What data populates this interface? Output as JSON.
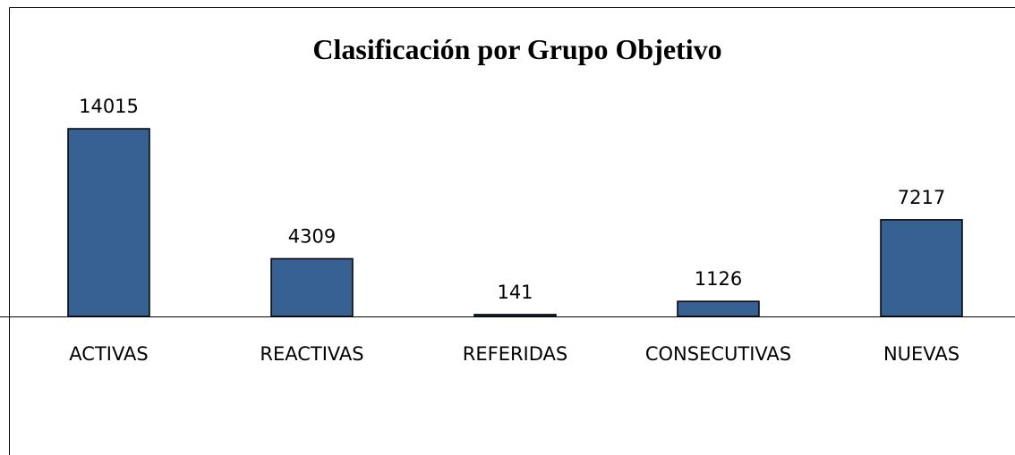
{
  "chart_data": {
    "type": "bar",
    "title": "Clasificación por Grupo Objetivo",
    "categories": [
      "ACTIVAS",
      "REACTIVAS",
      "REFERIDAS",
      "CONSECUTIVAS",
      "NUEVAS"
    ],
    "values": [
      14015,
      4309,
      141,
      1126,
      7217
    ],
    "color": "#376093"
  }
}
